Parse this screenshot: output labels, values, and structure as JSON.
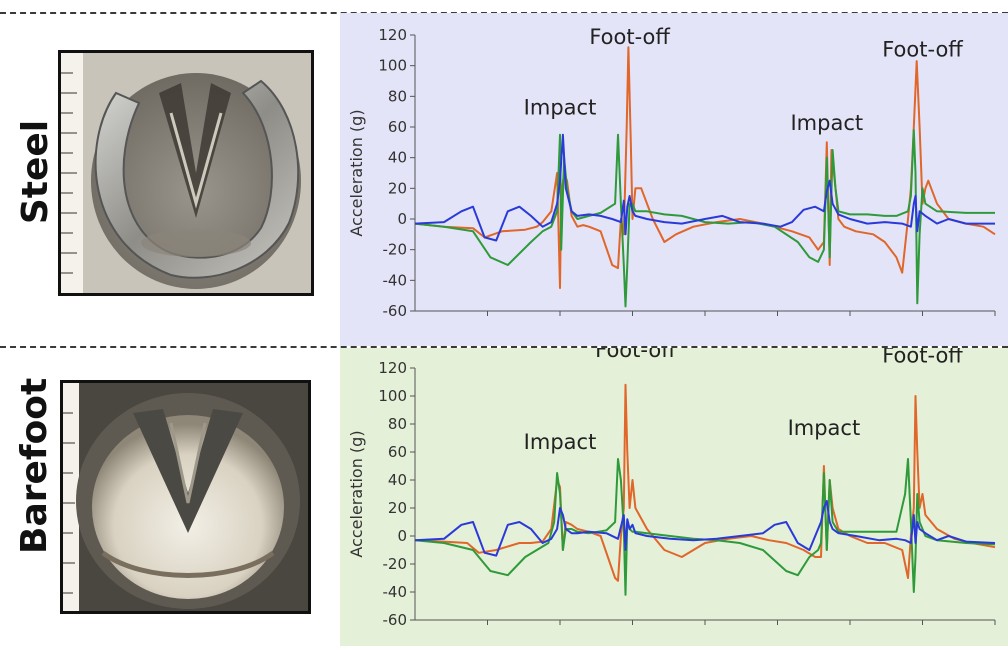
{
  "panels": [
    {
      "label": "Steel"
    },
    {
      "label": "Barefoot"
    }
  ],
  "colors": {
    "panel_bg_top": "#e4e4f8",
    "panel_bg_bottom": "#e4f0d8",
    "orange": "#e0662a",
    "green": "#2f9a3a",
    "blue": "#2a3ad8"
  },
  "chart_data": [
    {
      "type": "line",
      "ylabel": "Acceleration (g)",
      "ylim": [
        -60,
        120
      ],
      "yticks": [
        120,
        100,
        80,
        60,
        40,
        20,
        0,
        -20,
        -40,
        -60
      ],
      "xlim": [
        0,
        10
      ],
      "annotations": [
        {
          "text": "Impact",
          "x": 2.5,
          "y": 68
        },
        {
          "text": "Foot-off",
          "x": 3.7,
          "y": 114
        },
        {
          "text": "Impact",
          "x": 7.1,
          "y": 58
        },
        {
          "text": "Foot-off",
          "x": 8.75,
          "y": 106
        }
      ],
      "series": [
        {
          "color": "orange",
          "x": [
            0,
            0.5,
            1,
            1.2,
            1.5,
            1.9,
            2.1,
            2.2,
            2.35,
            2.45,
            2.5,
            2.52,
            2.57,
            2.62,
            2.7,
            2.8,
            2.9,
            3.0,
            3.2,
            3.4,
            3.5,
            3.55,
            3.6,
            3.65,
            3.68,
            3.72,
            3.75,
            3.8,
            3.9,
            4.1,
            4.3,
            4.5,
            4.8,
            5.2,
            5.6,
            6.0,
            6.2,
            6.5,
            6.8,
            6.95,
            7.05,
            7.1,
            7.15,
            7.18,
            7.25,
            7.3,
            7.4,
            7.6,
            7.9,
            8.1,
            8.3,
            8.4,
            8.5,
            8.55,
            8.6,
            8.65,
            8.7,
            8.75,
            8.8,
            8.85,
            9.0,
            9.2,
            9.5,
            9.8,
            10.0
          ],
          "y": [
            -3,
            -5,
            -6,
            -12,
            -8,
            -7,
            -5,
            -2,
            5,
            30,
            -45,
            15,
            30,
            25,
            2,
            -5,
            -4,
            -5,
            -8,
            -30,
            -32,
            0,
            -10,
            60,
            112,
            50,
            0,
            20,
            20,
            0,
            -15,
            -10,
            -5,
            -2,
            0,
            -3,
            -5,
            -8,
            -12,
            -20,
            -15,
            50,
            -30,
            45,
            20,
            0,
            -5,
            -8,
            -10,
            -15,
            -25,
            -35,
            0,
            20,
            60,
            103,
            60,
            10,
            20,
            25,
            10,
            0,
            -3,
            -5,
            -10
          ]
        },
        {
          "color": "green",
          "x": [
            0,
            0.5,
            1,
            1.3,
            1.6,
            2.0,
            2.2,
            2.35,
            2.45,
            2.5,
            2.52,
            2.57,
            2.62,
            2.7,
            2.8,
            3.0,
            3.2,
            3.45,
            3.5,
            3.55,
            3.6,
            3.63,
            3.66,
            3.7,
            3.75,
            3.8,
            4.0,
            4.3,
            4.6,
            5.0,
            5.4,
            5.8,
            6.2,
            6.6,
            6.8,
            6.95,
            7.05,
            7.1,
            7.15,
            7.2,
            7.25,
            7.3,
            7.5,
            7.8,
            8.1,
            8.3,
            8.5,
            8.55,
            8.6,
            8.63,
            8.66,
            8.7,
            8.75,
            8.8,
            9.0,
            9.5,
            10.0
          ],
          "y": [
            -3,
            -5,
            -8,
            -25,
            -30,
            -15,
            -8,
            -5,
            5,
            55,
            -20,
            40,
            20,
            5,
            0,
            2,
            4,
            10,
            55,
            10,
            -30,
            -57,
            -30,
            10,
            10,
            5,
            5,
            3,
            2,
            -2,
            -3,
            -2,
            -5,
            -15,
            -25,
            -28,
            -20,
            40,
            -25,
            45,
            20,
            5,
            3,
            3,
            2,
            2,
            5,
            15,
            58,
            30,
            -55,
            -10,
            20,
            10,
            5,
            4,
            4
          ]
        },
        {
          "color": "blue",
          "x": [
            0,
            0.5,
            0.8,
            1.0,
            1.2,
            1.4,
            1.6,
            1.8,
            2.0,
            2.2,
            2.35,
            2.45,
            2.5,
            2.55,
            2.6,
            2.7,
            2.8,
            3.0,
            3.2,
            3.4,
            3.55,
            3.6,
            3.63,
            3.66,
            3.7,
            3.75,
            3.8,
            4.0,
            4.3,
            4.6,
            5.0,
            5.3,
            5.6,
            6.0,
            6.3,
            6.5,
            6.7,
            6.9,
            7.05,
            7.1,
            7.15,
            7.2,
            7.3,
            7.5,
            7.8,
            8.1,
            8.4,
            8.55,
            8.6,
            8.63,
            8.66,
            8.7,
            8.8,
            9.0,
            9.2,
            9.5,
            10.0
          ],
          "y": [
            -3,
            -2,
            5,
            8,
            -12,
            -14,
            5,
            8,
            2,
            -5,
            -2,
            10,
            25,
            55,
            20,
            5,
            2,
            3,
            2,
            0,
            -2,
            12,
            -10,
            8,
            15,
            5,
            2,
            0,
            -2,
            -3,
            0,
            2,
            -2,
            -3,
            -5,
            -2,
            6,
            8,
            5,
            18,
            25,
            10,
            3,
            0,
            -3,
            -2,
            -3,
            -5,
            10,
            15,
            -8,
            5,
            2,
            -3,
            0,
            -3,
            -3
          ]
        }
      ]
    },
    {
      "type": "line",
      "ylabel": "Acceleration (g)",
      "ylim": [
        -60,
        120
      ],
      "yticks": [
        120,
        100,
        80,
        60,
        40,
        20,
        0,
        -20,
        -40,
        -60
      ],
      "xlim": [
        0,
        10
      ],
      "annotations": [
        {
          "text": "Impact",
          "x": 2.5,
          "y": 62
        },
        {
          "text": "Foot-off",
          "x": 3.8,
          "y": 128
        },
        {
          "text": "Impact",
          "x": 7.05,
          "y": 72
        },
        {
          "text": "Foot-off",
          "x": 8.75,
          "y": 124
        }
      ],
      "series": [
        {
          "color": "orange",
          "x": [
            0,
            0.5,
            0.9,
            1.1,
            1.4,
            1.8,
            2.0,
            2.2,
            2.35,
            2.45,
            2.5,
            2.55,
            2.6,
            2.7,
            2.8,
            3.0,
            3.2,
            3.45,
            3.5,
            3.55,
            3.6,
            3.63,
            3.66,
            3.7,
            3.75,
            3.8,
            4.0,
            4.3,
            4.6,
            5.0,
            5.4,
            5.8,
            6.1,
            6.4,
            6.7,
            6.9,
            7.0,
            7.05,
            7.1,
            7.15,
            7.2,
            7.3,
            7.5,
            7.8,
            8.1,
            8.4,
            8.5,
            8.55,
            8.6,
            8.63,
            8.66,
            8.7,
            8.75,
            8.8,
            9.0,
            9.3,
            9.6,
            10.0
          ],
          "y": [
            -3,
            -4,
            -5,
            -12,
            -10,
            -5,
            -5,
            -4,
            5,
            40,
            35,
            -10,
            10,
            8,
            5,
            3,
            0,
            -30,
            -32,
            0,
            20,
            108,
            60,
            20,
            40,
            20,
            5,
            -10,
            -15,
            -5,
            -2,
            0,
            -3,
            -5,
            -10,
            -15,
            -15,
            50,
            -10,
            40,
            20,
            5,
            0,
            -5,
            -5,
            -10,
            -30,
            0,
            20,
            100,
            60,
            20,
            30,
            15,
            5,
            -2,
            -5,
            -8
          ]
        },
        {
          "color": "green",
          "x": [
            0,
            0.5,
            1,
            1.3,
            1.6,
            1.9,
            2.1,
            2.3,
            2.4,
            2.45,
            2.5,
            2.55,
            2.6,
            2.7,
            2.8,
            3.0,
            3.3,
            3.45,
            3.5,
            3.55,
            3.6,
            3.63,
            3.66,
            3.7,
            3.75,
            3.8,
            4.0,
            4.4,
            4.8,
            5.2,
            5.6,
            6.0,
            6.4,
            6.6,
            6.8,
            6.95,
            7.0,
            7.05,
            7.1,
            7.15,
            7.2,
            7.3,
            7.6,
            8.0,
            8.3,
            8.45,
            8.5,
            8.55,
            8.6,
            8.63,
            8.66,
            8.7,
            8.75,
            8.8,
            9.0,
            9.5,
            10.0
          ],
          "y": [
            -3,
            -5,
            -10,
            -25,
            -28,
            -15,
            -10,
            -5,
            10,
            45,
            30,
            -10,
            5,
            5,
            3,
            2,
            4,
            10,
            55,
            40,
            5,
            -42,
            10,
            5,
            3,
            3,
            2,
            0,
            -2,
            -3,
            -5,
            -10,
            -25,
            -28,
            -15,
            -10,
            -5,
            45,
            -10,
            40,
            10,
            3,
            3,
            3,
            3,
            30,
            55,
            10,
            -40,
            -15,
            30,
            10,
            5,
            0,
            -3,
            -5,
            -6
          ]
        },
        {
          "color": "blue",
          "x": [
            0,
            0.5,
            0.8,
            1.0,
            1.2,
            1.4,
            1.6,
            1.8,
            2.0,
            2.2,
            2.35,
            2.45,
            2.5,
            2.55,
            2.6,
            2.7,
            2.8,
            3.0,
            3.3,
            3.5,
            3.6,
            3.63,
            3.66,
            3.7,
            3.75,
            3.8,
            4.0,
            4.4,
            4.8,
            5.2,
            5.6,
            6.0,
            6.2,
            6.4,
            6.6,
            6.8,
            6.95,
            7.0,
            7.05,
            7.1,
            7.15,
            7.2,
            7.3,
            7.6,
            8.0,
            8.3,
            8.45,
            8.55,
            8.6,
            8.63,
            8.66,
            8.7,
            8.8,
            9.0,
            9.2,
            9.5,
            10.0
          ],
          "y": [
            -3,
            -2,
            8,
            10,
            -12,
            -14,
            8,
            10,
            5,
            -5,
            -2,
            5,
            20,
            15,
            5,
            2,
            2,
            3,
            2,
            -2,
            15,
            -10,
            12,
            5,
            8,
            2,
            0,
            -2,
            -3,
            -2,
            0,
            2,
            8,
            10,
            -5,
            -10,
            5,
            10,
            20,
            25,
            10,
            5,
            2,
            0,
            -3,
            -2,
            -3,
            -5,
            15,
            -5,
            10,
            5,
            2,
            -3,
            0,
            -4,
            -5
          ]
        }
      ]
    }
  ]
}
